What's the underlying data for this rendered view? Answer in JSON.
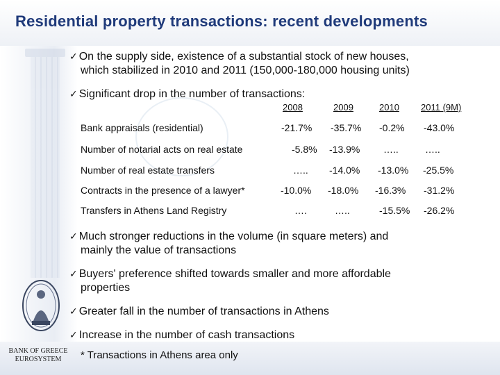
{
  "title": "Residential property transactions: recent developments",
  "bullets_top": [
    {
      "line1": "On the supply side, existence of a substantial stock of new houses,",
      "line2": "which stabilized in 2010 and 2011 (150,000-180,000 housing units)"
    },
    {
      "line1": "Significant drop in the number of transactions:",
      "line2": ""
    }
  ],
  "table": {
    "headers": [
      "2008",
      "2009",
      "2010",
      "2011 (9M)"
    ],
    "rows": [
      {
        "label": "Bank appraisals (residential)",
        "values": [
          "-21.7%",
          "-35.7%",
          "-0.2%",
          "-43.0%"
        ]
      },
      {
        "label": "Number of notarial acts on real estate",
        "values": [
          "-5.8%",
          "-13.9%",
          "…..",
          "….."
        ]
      },
      {
        "label": "Number of real estate transfers",
        "values": [
          "…..",
          "-14.0%",
          "-13.0%",
          "-25.5%"
        ]
      },
      {
        "label": "Contracts in the presence of a lawyer*",
        "values": [
          "-10.0%",
          "-18.0%",
          "-16.3%",
          "-31.2%"
        ]
      },
      {
        "label": "Transfers in Athens Land Registry",
        "values": [
          "….",
          "…..",
          "-15.5%",
          "-26.2%"
        ]
      }
    ]
  },
  "bullets_bottom": [
    {
      "line1": "Much stronger reductions in the volume (in square meters) and",
      "line2": "mainly the value of transactions"
    },
    {
      "line1": "Buyers' preference shifted towards smaller and more affordable",
      "line2": "properties"
    },
    {
      "line1": "Greater fall in the number of transactions in Athens",
      "line2": ""
    },
    {
      "line1": "Increase in the number of cash transactions",
      "line2": ""
    }
  ],
  "checkmark": "✓",
  "footnote": "* Transactions in Athens area only",
  "bank": {
    "line1": "BANK OF GREECE",
    "line2": "EUROSYSTEM"
  },
  "colors": {
    "title": "#1f3a7a",
    "text": "#111111"
  }
}
